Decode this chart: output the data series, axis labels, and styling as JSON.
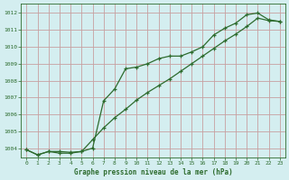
{
  "line1_x": [
    0,
    1,
    2,
    3,
    4,
    5,
    6,
    7,
    8,
    9,
    10,
    11,
    12,
    13,
    14,
    15,
    16,
    17,
    18,
    19,
    20,
    21,
    22,
    23
  ],
  "line1_y": [
    1003.9,
    1003.6,
    1003.8,
    1003.7,
    1003.7,
    1003.8,
    1004.0,
    1006.8,
    1007.5,
    1008.7,
    1008.8,
    1009.0,
    1009.3,
    1009.45,
    1009.45,
    1009.7,
    1010.0,
    1010.7,
    1011.1,
    1011.4,
    1011.9,
    1012.0,
    1011.6,
    1011.5
  ],
  "line2_x": [
    0,
    1,
    2,
    3,
    4,
    5,
    6,
    7,
    8,
    9,
    10,
    11,
    12,
    13,
    14,
    15,
    16,
    17,
    18,
    19,
    20,
    21,
    22,
    23
  ],
  "line2_y": [
    1003.9,
    1003.6,
    1003.8,
    1003.8,
    1003.75,
    1003.8,
    1004.5,
    1005.2,
    1005.8,
    1006.3,
    1006.85,
    1007.3,
    1007.7,
    1008.1,
    1008.55,
    1009.0,
    1009.45,
    1009.9,
    1010.35,
    1010.75,
    1011.2,
    1011.7,
    1011.55,
    1011.5
  ],
  "line_color": "#2d6b2d",
  "bg_color": "#d4eef0",
  "grid_color": "#c8a0a0",
  "xlabel": "Graphe pression niveau de la mer (hPa)",
  "ylim": [
    1003.45,
    1012.55
  ],
  "xlim": [
    -0.5,
    23.5
  ],
  "yticks": [
    1004,
    1005,
    1006,
    1007,
    1008,
    1009,
    1010,
    1011,
    1012
  ],
  "xticks": [
    0,
    1,
    2,
    3,
    4,
    5,
    6,
    7,
    8,
    9,
    10,
    11,
    12,
    13,
    14,
    15,
    16,
    17,
    18,
    19,
    20,
    21,
    22,
    23
  ]
}
